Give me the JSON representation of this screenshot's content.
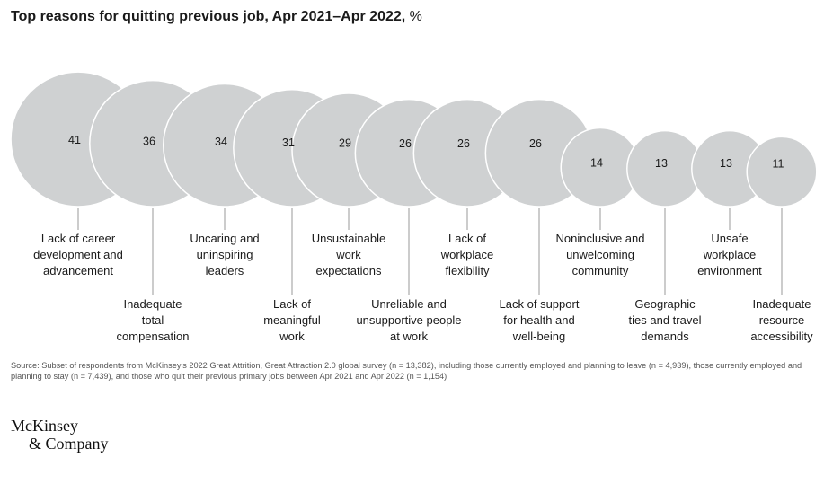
{
  "chart_data": {
    "type": "bubble",
    "title": "Top reasons for quitting previous job, Apr 2021–Apr 2022,",
    "title_unit": "%",
    "unit": "%",
    "bubble_color": "#cfd1d2",
    "bubble_stroke": "#ffffff",
    "categories": [
      "Lack of career development and advancement",
      "Inadequate total compensation",
      "Uncaring and uninspiring leaders",
      "Lack of meaningful work",
      "Unsustainable work expectations",
      "Unreliable and unsupportive people at work",
      "Lack of workplace flexibility",
      "Lack of support for health and well-being",
      "Noninclusive and unwelcoming community",
      "Geographic ties and travel demands",
      "Unsafe workplace environment",
      "Inadequate resource accessibility"
    ],
    "values": [
      41,
      36,
      34,
      31,
      29,
      26,
      26,
      26,
      14,
      13,
      13,
      11
    ],
    "label_lines": [
      [
        "Lack of career",
        "development and",
        "advancement"
      ],
      [
        "Inadequate",
        "total",
        "compensation"
      ],
      [
        "Uncaring and",
        "uninspiring",
        "leaders"
      ],
      [
        "Lack of",
        "meaningful",
        "work"
      ],
      [
        "Unsustainable",
        "work",
        "expectations"
      ],
      [
        "Unreliable and",
        "unsupportive people",
        "at work"
      ],
      [
        "Lack of",
        "workplace",
        "flexibility"
      ],
      [
        "Lack of support",
        "for health and",
        "well-being"
      ],
      [
        "Noninclusive and",
        "unwelcoming",
        "community"
      ],
      [
        "Geographic",
        "ties and travel",
        "demands"
      ],
      [
        "Unsafe",
        "workplace",
        "environment"
      ],
      [
        "Inadequate",
        "resource",
        "accessibility"
      ]
    ]
  },
  "source_note": "Source: Subset of respondents from McKinsey's 2022 Great Attrition, Great Attraction 2.0 global survey (n = 13,382), including those currently employed and planning to leave (n = 4,939), those currently employed and planning to stay (n = 7,439), and those who quit their previous primary jobs between Apr 2021 and Apr 2022 (n = 1,154)",
  "logo": {
    "line1": "McKinsey",
    "line2": "& Company"
  }
}
